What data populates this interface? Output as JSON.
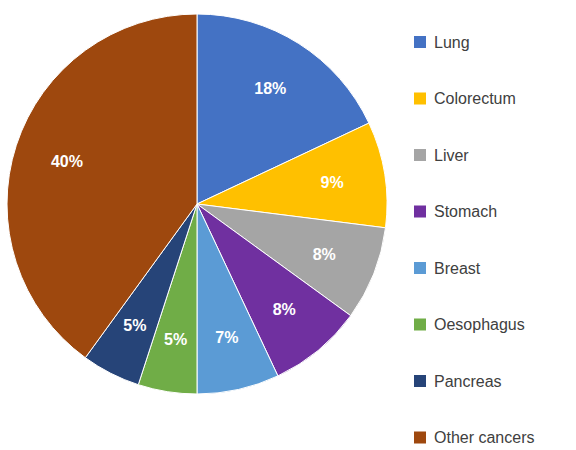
{
  "chart_data": {
    "type": "pie",
    "categories": [
      "Lung",
      "Colorectum",
      "Liver",
      "Stomach",
      "Breast",
      "Oesophagus",
      "Pancreas",
      "Other cancers"
    ],
    "values": [
      18,
      9,
      8,
      8,
      7,
      5,
      5,
      40
    ],
    "value_labels": [
      "18%",
      "9%",
      "8%",
      "8%",
      "7%",
      "5%",
      "5%",
      "40%"
    ],
    "colors": [
      "#4472c4",
      "#ffc000",
      "#a5a5a5",
      "#7030a0",
      "#5b9bd5",
      "#70ad47",
      "#264478",
      "#9e480e"
    ],
    "data_labels": true,
    "legend": "right"
  }
}
